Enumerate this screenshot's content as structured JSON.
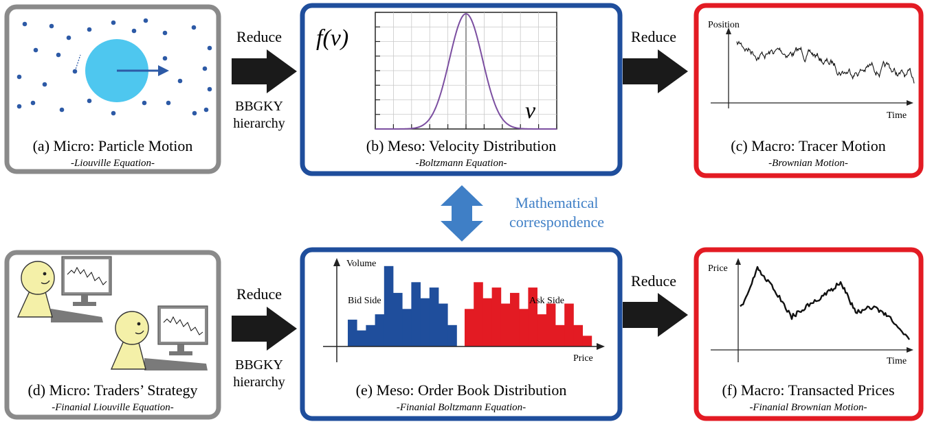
{
  "colors": {
    "micro_frame": "#8a8a8a",
    "meso_frame": "#1f4e9c",
    "macro_frame": "#e31b23",
    "particle": "#2d5aa6",
    "tracer": "#4ec7ef",
    "accent_blue": "#3f7fc6",
    "bid_bar": "#1f4e9c",
    "ask_bar": "#e31b23",
    "curve": "#7b4ea0",
    "face": "#f4f0a8",
    "arrow": "#1a1a1a"
  },
  "panels": {
    "a": {
      "caption": "(a) Micro: Particle Motion",
      "equation": "-Liouville Equation-"
    },
    "b": {
      "caption": "(b) Meso: Velocity Distribution",
      "equation": "-Boltzmann Equation-",
      "ylabel": "f(v)",
      "xlabel": "v"
    },
    "c": {
      "caption": "(c) Macro: Tracer Motion",
      "equation": "-Brownian Motion-",
      "ylabel": "Position",
      "xlabel": "Time"
    },
    "d": {
      "caption": "(d) Micro: Traders’ Strategy",
      "equation": "-Finanial Liouville Equation-"
    },
    "e": {
      "caption": "(e) Meso: Order Book Distribution",
      "equation": "-Finanial Boltzmann Equation-",
      "ylabel": "Volume",
      "xlabel": "Price",
      "bid_label": "Bid Side",
      "ask_label": "Ask Side"
    },
    "f": {
      "caption": "(f) Macro: Transacted Prices",
      "equation": "-Finanial Brownian Motion-",
      "ylabel": "Price",
      "xlabel": "Time"
    }
  },
  "arrows": {
    "top_left": {
      "label_top": "Reduce",
      "label_bottom_1": "BBGKY",
      "label_bottom_2": "hierarchy"
    },
    "top_right": {
      "label_top": "Reduce"
    },
    "bottom_left": {
      "label_top": "Reduce",
      "label_bottom_1": "BBGKY",
      "label_bottom_2": "hierarchy"
    },
    "bottom_right": {
      "label_top": "Reduce"
    }
  },
  "correspondence": {
    "line1": "Mathematical",
    "line2": "correspondence"
  },
  "order_book": {
    "bid_volumes": [
      5,
      3,
      4,
      6,
      15,
      10,
      7,
      12,
      9,
      11,
      8,
      4
    ],
    "ask_volumes": [
      7,
      12,
      9,
      11,
      8,
      10,
      7,
      11,
      6,
      8,
      4,
      8,
      4,
      2
    ],
    "vmax": 16
  }
}
